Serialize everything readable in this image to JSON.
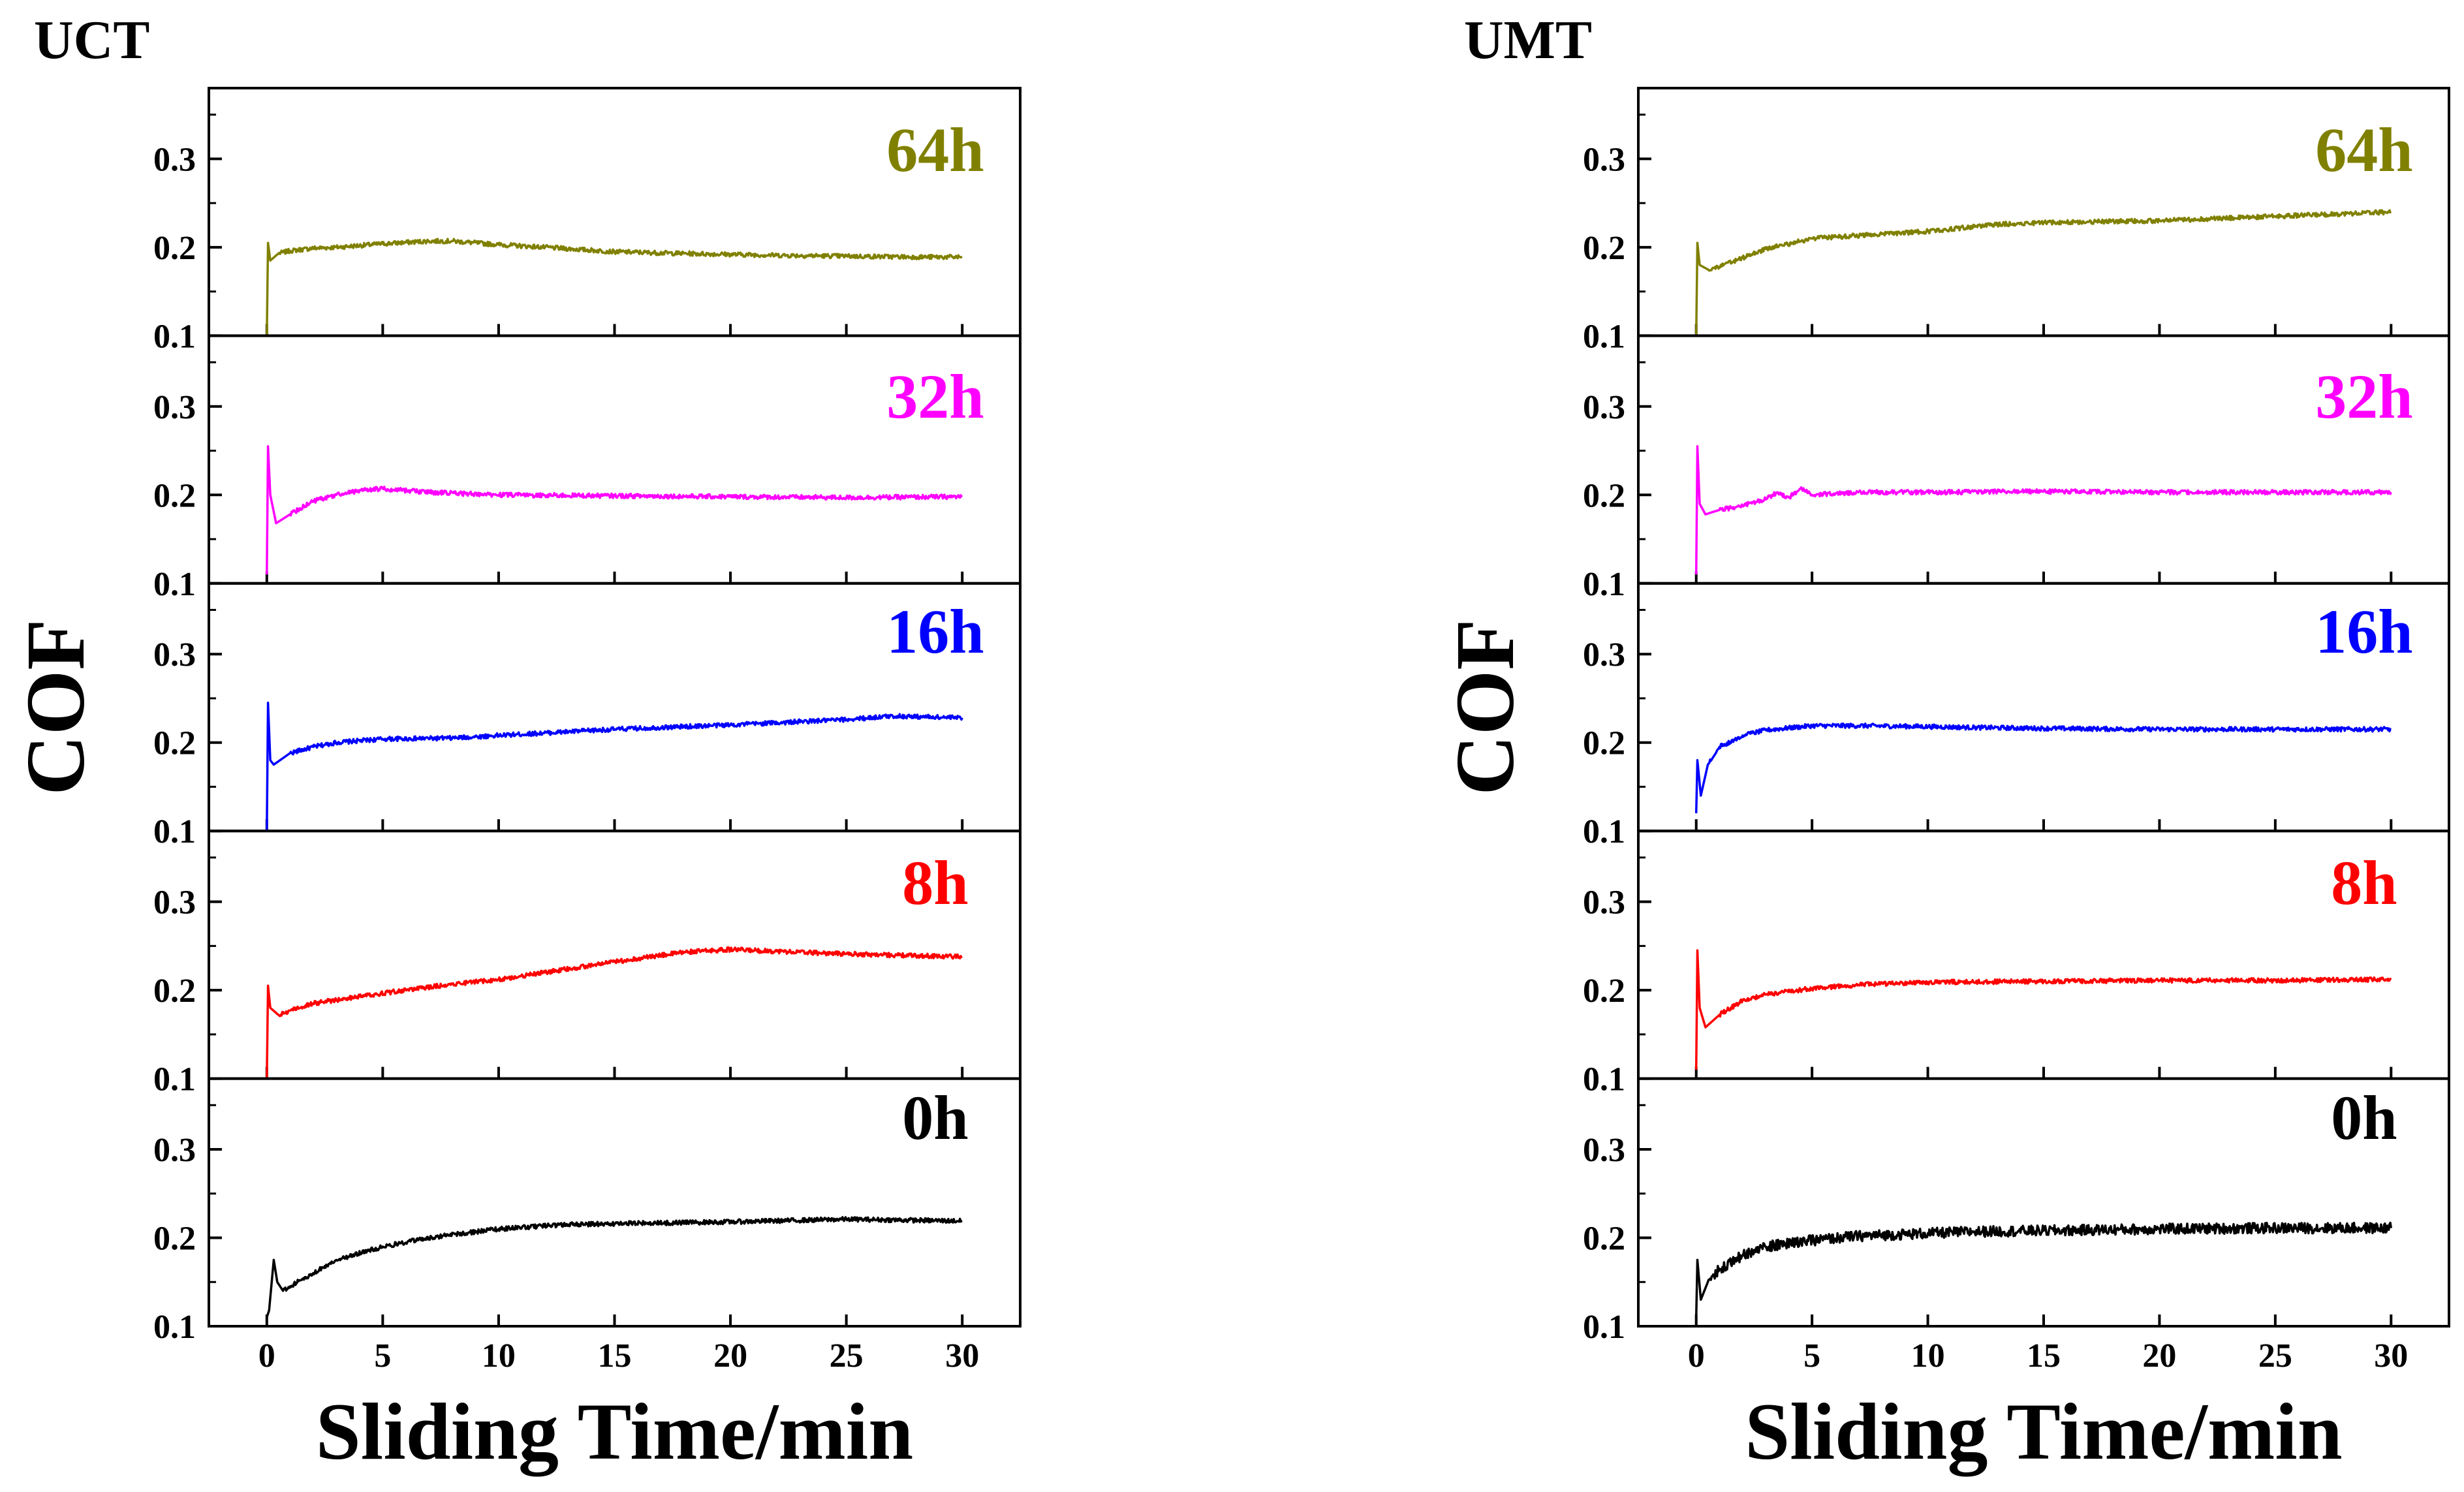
{
  "chart_data": [
    {
      "type": "line",
      "title": "UCT",
      "xlabel": "Sliding Time/min",
      "ylabel": "COF",
      "xlim": [
        -2.5,
        32.5
      ],
      "xticks": [
        0,
        5,
        10,
        15,
        20,
        25,
        30
      ],
      "ylim": [
        0.1,
        0.38
      ],
      "yticks": [
        0.1,
        0.2,
        0.3
      ],
      "series": [
        {
          "name": "64h",
          "color": "#808000",
          "x": [
            0,
            0.05,
            0.15,
            0.5,
            1,
            2,
            3,
            5,
            7,
            8,
            10,
            12,
            15,
            18,
            20,
            22,
            25,
            28,
            30
          ],
          "y": [
            0.1,
            0.205,
            0.185,
            0.193,
            0.196,
            0.199,
            0.2,
            0.204,
            0.207,
            0.207,
            0.203,
            0.2,
            0.195,
            0.193,
            0.192,
            0.191,
            0.19,
            0.189,
            0.189
          ]
        },
        {
          "name": "32h",
          "color": "#ff00ff",
          "x": [
            0,
            0.05,
            0.15,
            0.4,
            1,
            2,
            3,
            4,
            5,
            7,
            10,
            15,
            20,
            25,
            30
          ],
          "y": [
            0.11,
            0.255,
            0.2,
            0.168,
            0.178,
            0.193,
            0.2,
            0.205,
            0.207,
            0.203,
            0.2,
            0.199,
            0.198,
            0.197,
            0.198
          ]
        },
        {
          "name": "16h",
          "color": "#0000ff",
          "x": [
            0,
            0.05,
            0.15,
            0.3,
            1,
            2,
            3,
            5,
            8,
            10,
            15,
            20,
            25,
            27,
            30
          ],
          "y": [
            0.1,
            0.245,
            0.18,
            0.175,
            0.188,
            0.195,
            0.2,
            0.204,
            0.205,
            0.208,
            0.215,
            0.22,
            0.226,
            0.23,
            0.228
          ]
        },
        {
          "name": "8h",
          "color": "#ff0000",
          "x": [
            0,
            0.05,
            0.15,
            0.5,
            1,
            2,
            4,
            6,
            8,
            10,
            12,
            15,
            18,
            20,
            22,
            25,
            28,
            30
          ],
          "y": [
            0.1,
            0.205,
            0.18,
            0.172,
            0.177,
            0.185,
            0.193,
            0.2,
            0.207,
            0.212,
            0.22,
            0.232,
            0.243,
            0.246,
            0.244,
            0.241,
            0.239,
            0.238
          ]
        },
        {
          "name": "0h",
          "color": "#000000",
          "x": [
            0,
            0.1,
            0.3,
            0.45,
            0.7,
            1,
            2,
            3,
            5,
            7,
            10,
            13,
            15,
            20,
            25,
            30
          ],
          "y": [
            0.11,
            0.118,
            0.175,
            0.15,
            0.14,
            0.145,
            0.16,
            0.175,
            0.19,
            0.2,
            0.21,
            0.215,
            0.216,
            0.218,
            0.221,
            0.219
          ]
        }
      ]
    },
    {
      "type": "line",
      "title": "UMT",
      "xlabel": "Sliding Time/min",
      "ylabel": "COF",
      "xlim": [
        -2.5,
        32.5
      ],
      "xticks": [
        0,
        5,
        10,
        15,
        20,
        25,
        30
      ],
      "ylim": [
        0.1,
        0.38
      ],
      "yticks": [
        0.1,
        0.2,
        0.3
      ],
      "series": [
        {
          "name": "64h",
          "color": "#808000",
          "x": [
            0,
            0.05,
            0.15,
            0.5,
            1,
            2,
            3,
            5,
            8,
            10,
            13,
            15,
            20,
            25,
            30
          ],
          "y": [
            0.1,
            0.205,
            0.18,
            0.175,
            0.178,
            0.188,
            0.198,
            0.21,
            0.215,
            0.218,
            0.226,
            0.228,
            0.23,
            0.235,
            0.24
          ]
        },
        {
          "name": "32h",
          "color": "#ff00ff",
          "x": [
            0,
            0.05,
            0.15,
            0.4,
            1,
            2,
            3,
            3.5,
            4,
            4.5,
            5,
            7,
            10,
            15,
            20,
            25,
            30
          ],
          "y": [
            0.11,
            0.255,
            0.19,
            0.178,
            0.183,
            0.188,
            0.195,
            0.203,
            0.197,
            0.207,
            0.2,
            0.203,
            0.203,
            0.204,
            0.203,
            0.203,
            0.203
          ]
        },
        {
          "name": "16h",
          "color": "#0000ff",
          "x": [
            0,
            0.05,
            0.2,
            0.5,
            1,
            2,
            3,
            5,
            7,
            10,
            12,
            15,
            20,
            25,
            30
          ],
          "y": [
            0.12,
            0.18,
            0.14,
            0.175,
            0.195,
            0.208,
            0.214,
            0.219,
            0.219,
            0.218,
            0.217,
            0.216,
            0.215,
            0.215,
            0.215
          ]
        },
        {
          "name": "8h",
          "color": "#ff0000",
          "x": [
            0,
            0.05,
            0.15,
            0.4,
            1,
            2,
            3,
            5,
            7,
            10,
            15,
            20,
            25,
            30
          ],
          "y": [
            0.11,
            0.245,
            0.18,
            0.158,
            0.172,
            0.188,
            0.195,
            0.202,
            0.206,
            0.209,
            0.21,
            0.211,
            0.211,
            0.212
          ]
        },
        {
          "name": "0h",
          "color": "#000000",
          "x": [
            0,
            0.05,
            0.2,
            0.5,
            1,
            2,
            3,
            5,
            7,
            10,
            12,
            15,
            20,
            25,
            30
          ],
          "y": [
            0.11,
            0.175,
            0.13,
            0.15,
            0.165,
            0.18,
            0.19,
            0.197,
            0.202,
            0.205,
            0.207,
            0.208,
            0.21,
            0.211,
            0.211
          ]
        }
      ]
    }
  ]
}
